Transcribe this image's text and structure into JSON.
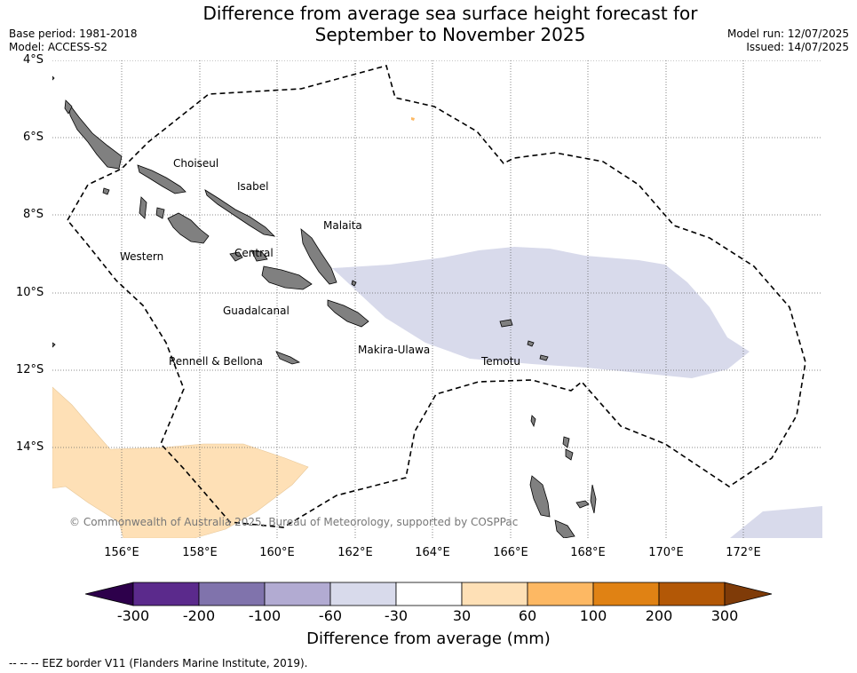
{
  "title_line1": "Difference from average sea surface height forecast for",
  "title_line2": "September to November 2025",
  "base_period": "Base period: 1981-2018",
  "model": "Model: ACCESS-S2",
  "model_run": "Model run: 12/07/2025",
  "issued": "Issued: 14/07/2025",
  "lat_labels": [
    "4°S",
    "6°S",
    "8°S",
    "10°S",
    "12°S",
    "14°S"
  ],
  "lon_labels": [
    "156°E",
    "158°E",
    "160°E",
    "162°E",
    "164°E",
    "166°E",
    "168°E",
    "170°E",
    "172°E"
  ],
  "regions": {
    "choiseul": "Choiseul",
    "isabel": "Isabel",
    "malaita": "Malaita",
    "western": "Western",
    "central": "Central",
    "guadalcanal": "Guadalcanal",
    "makira": "Makira-Ulawa",
    "rennell": "Rennell & Bellona",
    "temotu": "Temotu"
  },
  "copyright": "© Commonwealth of Australia 2025, Bureau of Meteorology, supported by COSPPac",
  "colorbar": {
    "title": "Difference from average (mm)",
    "ticks": [
      "-300",
      "-200",
      "-100",
      "-60",
      "-30",
      "30",
      "60",
      "100",
      "200",
      "300"
    ],
    "colors": [
      "#5b2a8c",
      "#8073ac",
      "#b2abd2",
      "#d8daeb",
      "#ffffff",
      "#fee0b6",
      "#fdb863",
      "#e08214",
      "#b35806"
    ],
    "under_color": "#2d004b",
    "over_color": "#7f3b08"
  },
  "footnote": "--  --  -- EEZ border V11 (Flanders Marine Institute, 2019)."
}
